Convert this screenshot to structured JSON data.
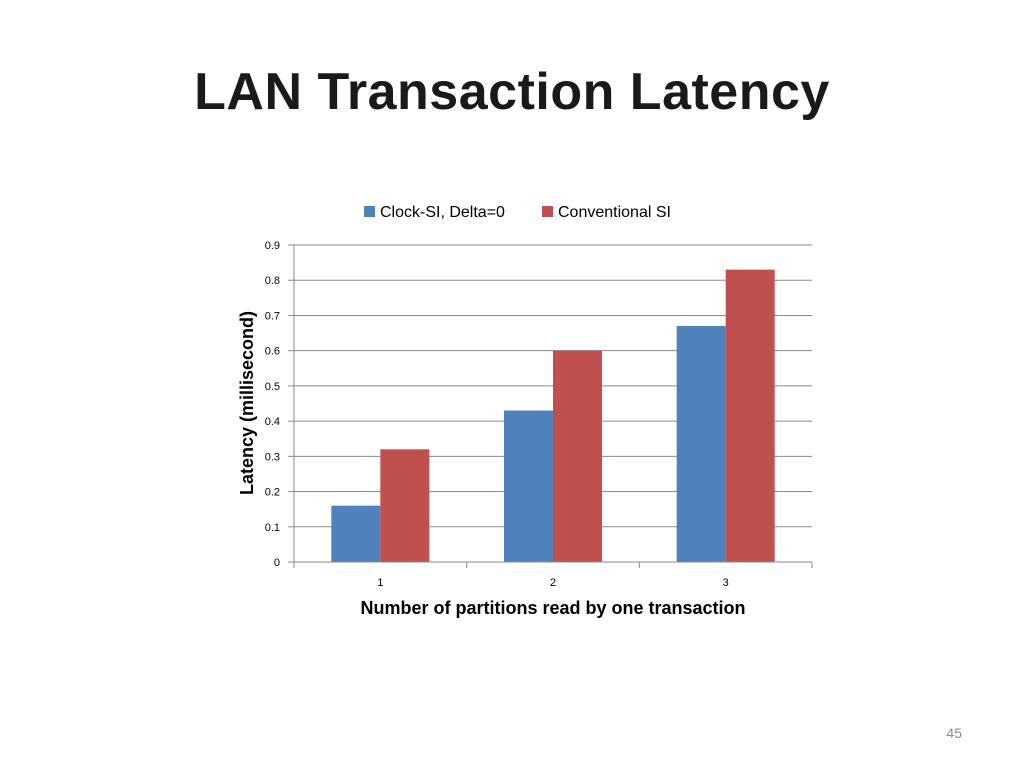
{
  "slide": {
    "title": "LAN Transaction Latency",
    "page_number": "45"
  },
  "chart_data": {
    "type": "bar",
    "categories": [
      "1",
      "2",
      "3"
    ],
    "series": [
      {
        "name": "Clock-SI, Delta=0",
        "values": [
          0.16,
          0.43,
          0.67
        ],
        "color": "#4f81bd"
      },
      {
        "name": "Conventional SI",
        "values": [
          0.32,
          0.6,
          0.83
        ],
        "color": "#c0504d"
      }
    ],
    "xlabel": "Number of partitions read by one transaction",
    "ylabel": "Latency (millisecond)",
    "ylim": [
      0,
      0.9
    ],
    "yticks": [
      0,
      0.1,
      0.2,
      0.3,
      0.4,
      0.5,
      0.6,
      0.7,
      0.8,
      0.9
    ],
    "ytick_labels": [
      "0",
      "0.1",
      "0.2",
      "0.3",
      "0.4",
      "0.5",
      "0.6",
      "0.7",
      "0.8",
      "0.9"
    ],
    "grid": true,
    "legend": "top"
  }
}
